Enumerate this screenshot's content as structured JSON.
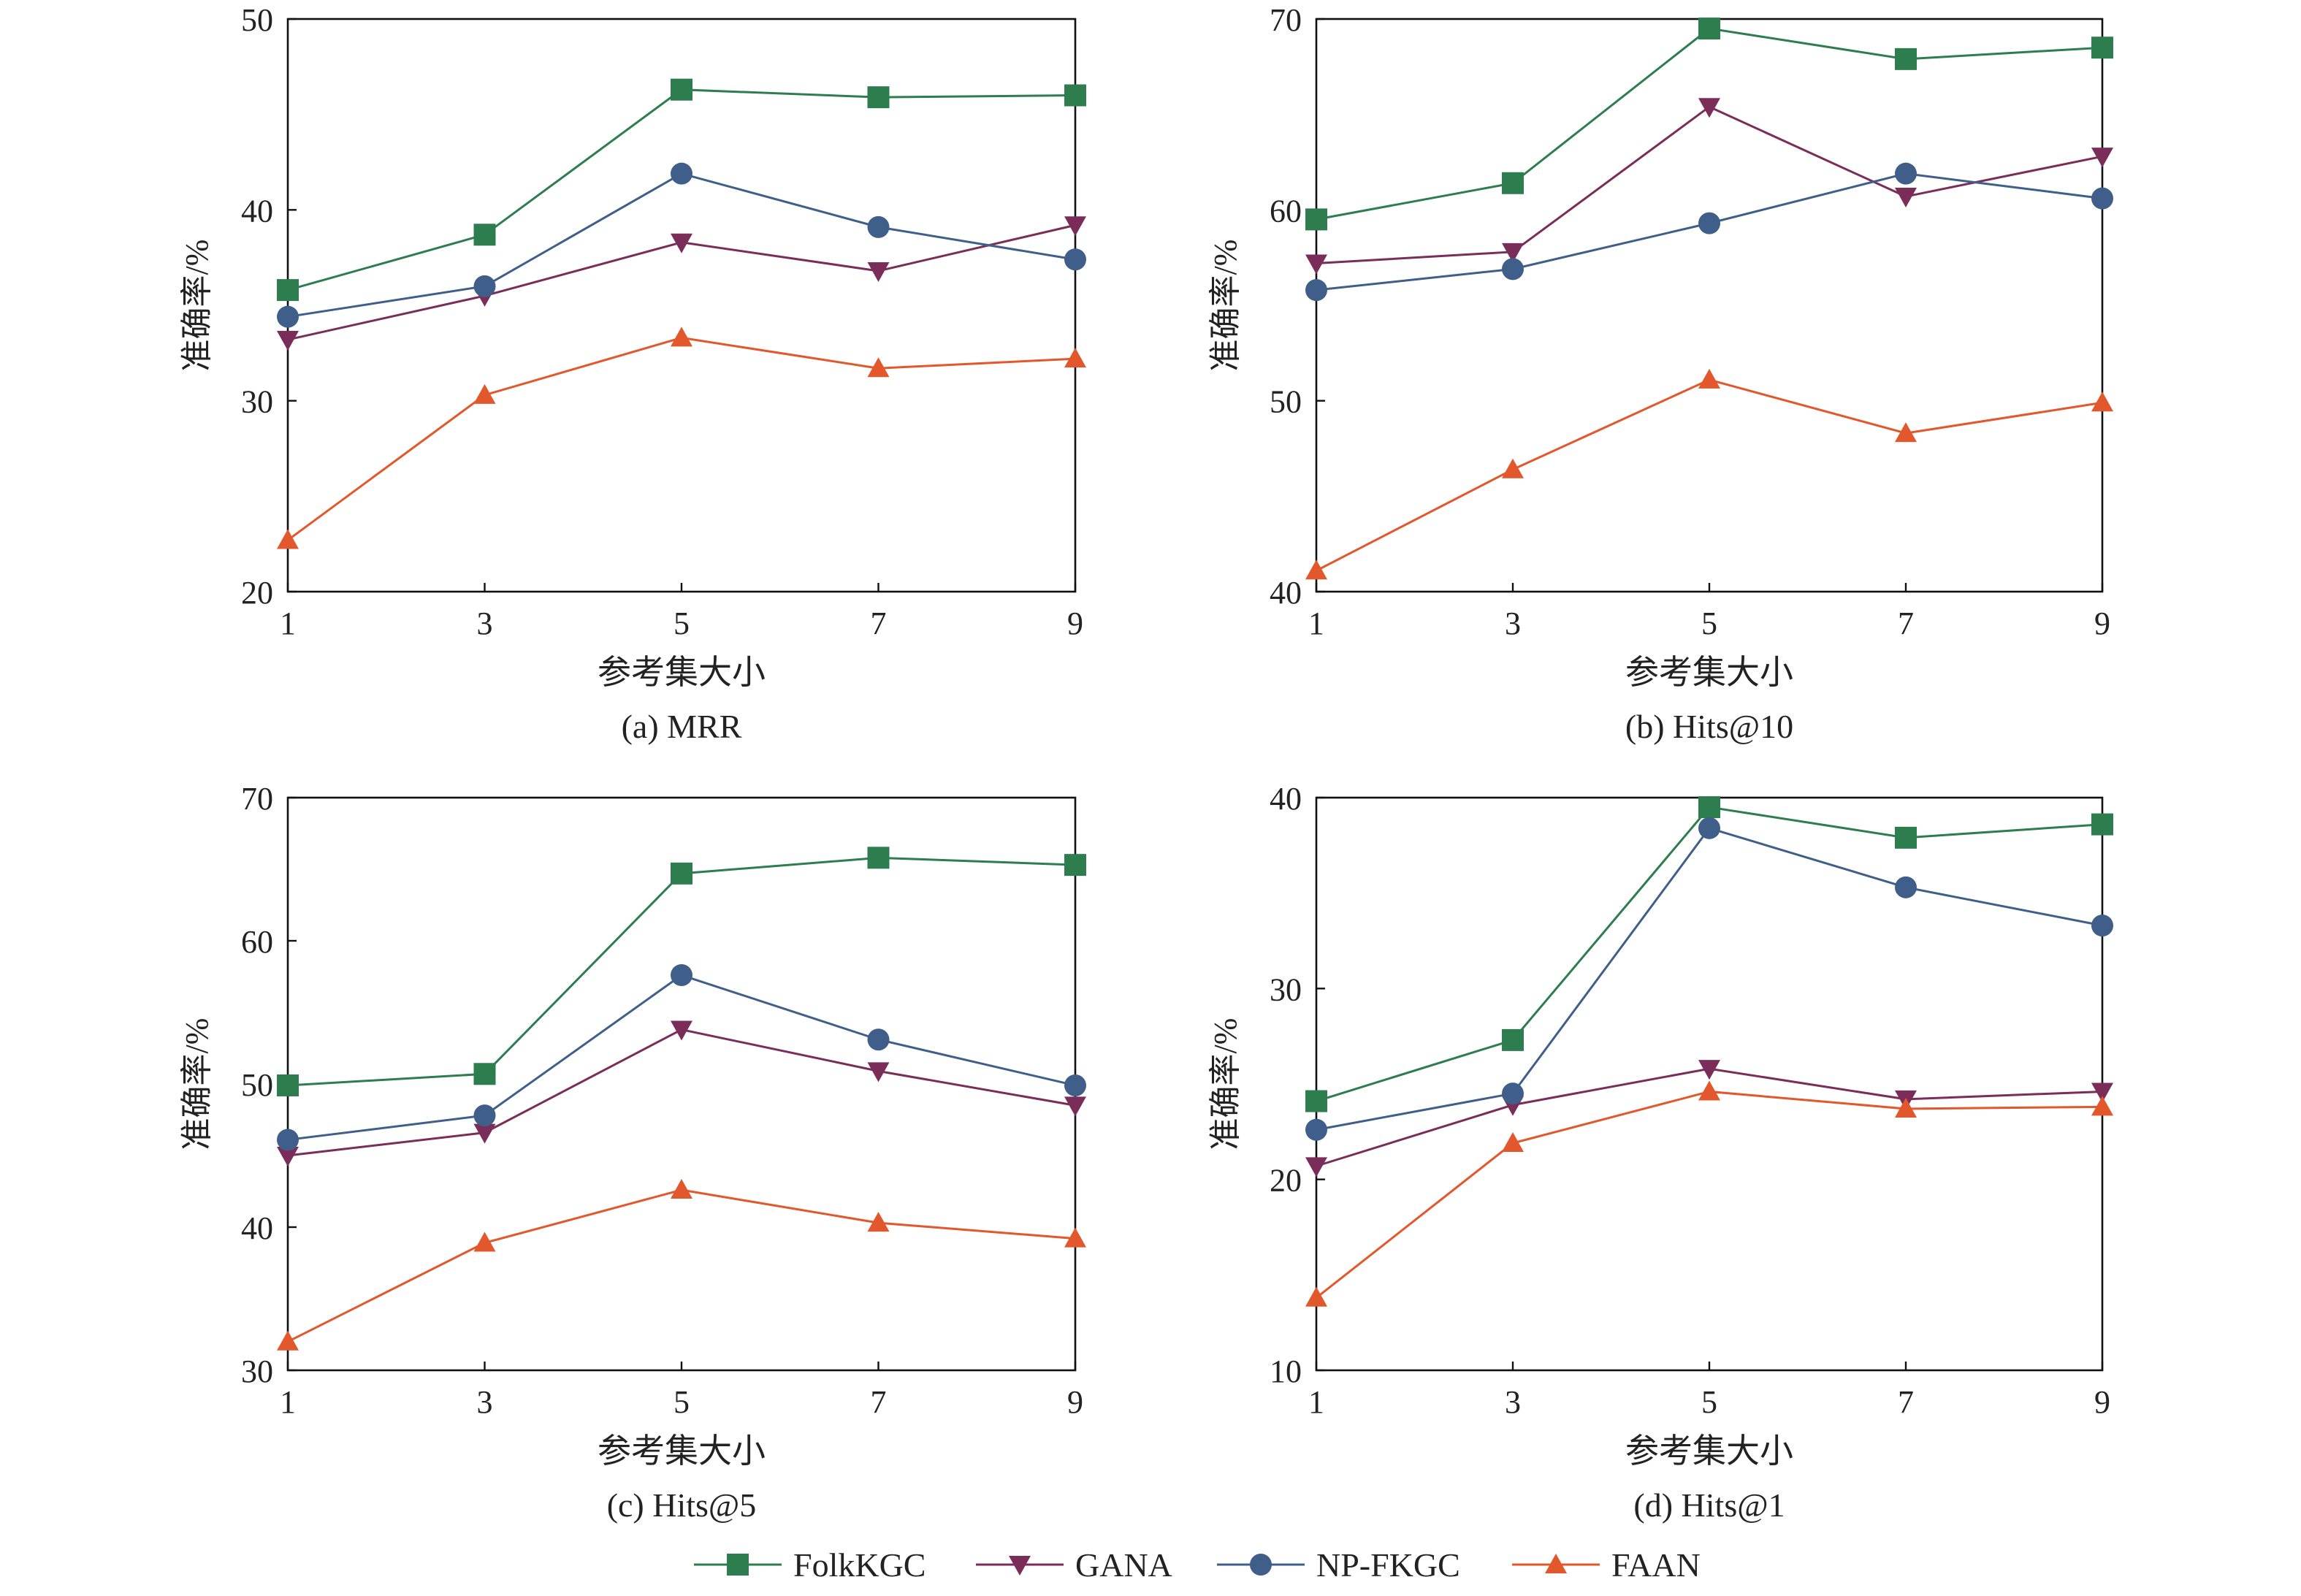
{
  "series_styles": [
    {
      "name": "FolkKGC",
      "color": "#2e7d4f",
      "marker": "square"
    },
    {
      "name": "GANA",
      "color": "#7b2d5a",
      "marker": "triangle-down"
    },
    {
      "name": "NP-FKGC",
      "color": "#3f5f8a",
      "marker": "circle"
    },
    {
      "name": "FAAN",
      "color": "#e2572b",
      "marker": "triangle-up"
    }
  ],
  "legend": {
    "placement": "bottom-center",
    "entries": [
      "FolkKGC",
      "GANA",
      "NP-FKGC",
      "FAAN"
    ]
  },
  "chart_data": [
    {
      "type": "line",
      "caption": "(a) MRR",
      "xlabel": "参考集大小",
      "ylabel": "准确率/%",
      "x": [
        1,
        3,
        5,
        7,
        9
      ],
      "xticks": [
        1,
        3,
        5,
        7,
        9
      ],
      "ylim": [
        20,
        50
      ],
      "yticks": [
        20,
        30,
        40,
        50
      ],
      "grid": false,
      "series": [
        {
          "name": "FolkKGC",
          "values": [
            35.8,
            38.7,
            46.3,
            45.9,
            46.0
          ]
        },
        {
          "name": "GANA",
          "values": [
            33.2,
            35.5,
            38.3,
            36.8,
            39.2
          ]
        },
        {
          "name": "NP-FKGC",
          "values": [
            34.4,
            36.0,
            41.9,
            39.1,
            37.4
          ]
        },
        {
          "name": "FAAN",
          "values": [
            22.7,
            30.3,
            33.3,
            31.7,
            32.2
          ]
        }
      ]
    },
    {
      "type": "line",
      "caption": "(b) Hits@10",
      "xlabel": "参考集大小",
      "ylabel": "准确率/%",
      "x": [
        1,
        3,
        5,
        7,
        9
      ],
      "xticks": [
        1,
        3,
        5,
        7,
        9
      ],
      "ylim": [
        40,
        70
      ],
      "yticks": [
        40,
        50,
        60,
        70
      ],
      "grid": false,
      "series": [
        {
          "name": "FolkKGC",
          "values": [
            59.5,
            61.4,
            69.5,
            67.9,
            68.5
          ]
        },
        {
          "name": "GANA",
          "values": [
            57.2,
            57.8,
            65.4,
            60.7,
            62.8
          ]
        },
        {
          "name": "NP-FKGC",
          "values": [
            55.8,
            56.9,
            59.3,
            61.9,
            60.6
          ]
        },
        {
          "name": "FAAN",
          "values": [
            41.1,
            46.4,
            51.1,
            48.3,
            49.9
          ]
        }
      ]
    },
    {
      "type": "line",
      "caption": "(c) Hits@5",
      "xlabel": "参考集大小",
      "ylabel": "准确率/%",
      "x": [
        1,
        3,
        5,
        7,
        9
      ],
      "xticks": [
        1,
        3,
        5,
        7,
        9
      ],
      "ylim": [
        30,
        70
      ],
      "yticks": [
        30,
        40,
        50,
        60,
        70
      ],
      "grid": false,
      "series": [
        {
          "name": "FolkKGC",
          "values": [
            49.9,
            50.7,
            64.7,
            65.8,
            65.3
          ]
        },
        {
          "name": "GANA",
          "values": [
            45.0,
            46.6,
            53.8,
            50.9,
            48.5
          ]
        },
        {
          "name": "NP-FKGC",
          "values": [
            46.1,
            47.8,
            57.6,
            53.1,
            49.9
          ]
        },
        {
          "name": "FAAN",
          "values": [
            32.0,
            38.9,
            42.6,
            40.3,
            39.2
          ]
        }
      ]
    },
    {
      "type": "line",
      "caption": "(d) Hits@1",
      "xlabel": "参考集大小",
      "ylabel": "准确率/%",
      "x": [
        1,
        3,
        5,
        7,
        9
      ],
      "xticks": [
        1,
        3,
        5,
        7,
        9
      ],
      "ylim": [
        10,
        40
      ],
      "yticks": [
        10,
        20,
        30,
        40
      ],
      "grid": false,
      "series": [
        {
          "name": "FolkKGC",
          "values": [
            24.1,
            27.3,
            39.5,
            37.9,
            38.6
          ]
        },
        {
          "name": "GANA",
          "values": [
            20.7,
            23.9,
            25.8,
            24.2,
            24.6
          ]
        },
        {
          "name": "NP-FKGC",
          "values": [
            22.6,
            24.5,
            38.4,
            35.3,
            33.3
          ]
        },
        {
          "name": "FAAN",
          "values": [
            13.8,
            21.9,
            24.6,
            23.7,
            23.8
          ]
        }
      ]
    }
  ]
}
